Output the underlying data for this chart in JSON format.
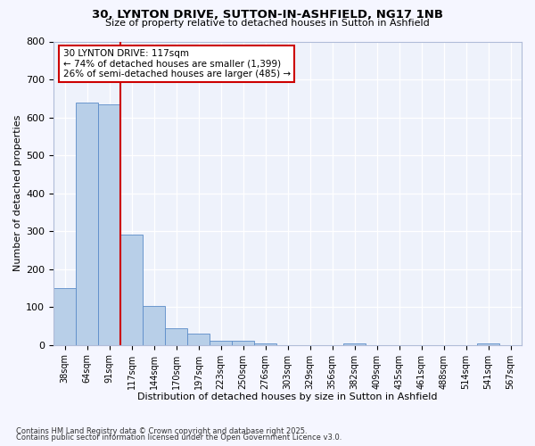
{
  "title1": "30, LYNTON DRIVE, SUTTON-IN-ASHFIELD, NG17 1NB",
  "title2": "Size of property relative to detached houses in Sutton in Ashfield",
  "xlabel": "Distribution of detached houses by size in Sutton in Ashfield",
  "ylabel": "Number of detached properties",
  "categories": [
    "38sqm",
    "64sqm",
    "91sqm",
    "117sqm",
    "144sqm",
    "170sqm",
    "197sqm",
    "223sqm",
    "250sqm",
    "276sqm",
    "303sqm",
    "329sqm",
    "356sqm",
    "382sqm",
    "409sqm",
    "435sqm",
    "461sqm",
    "488sqm",
    "514sqm",
    "541sqm",
    "567sqm"
  ],
  "values": [
    150,
    640,
    635,
    290,
    103,
    45,
    30,
    12,
    10,
    5,
    0,
    0,
    0,
    5,
    0,
    0,
    0,
    0,
    0,
    5,
    0
  ],
  "bar_color": "#b8cfe8",
  "bar_edge_color": "#5b8cc8",
  "background_color": "#eef2fb",
  "grid_color": "#ffffff",
  "vline_x_index": 3,
  "vline_color": "#cc0000",
  "annotation_title": "30 LYNTON DRIVE: 117sqm",
  "annotation_line1": "← 74% of detached houses are smaller (1,399)",
  "annotation_line2": "26% of semi-detached houses are larger (485) →",
  "annotation_box_color": "#cc0000",
  "ylim": [
    0,
    800
  ],
  "yticks": [
    0,
    100,
    200,
    300,
    400,
    500,
    600,
    700,
    800
  ],
  "footnote1": "Contains HM Land Registry data © Crown copyright and database right 2025.",
  "footnote2": "Contains public sector information licensed under the Open Government Licence v3.0."
}
